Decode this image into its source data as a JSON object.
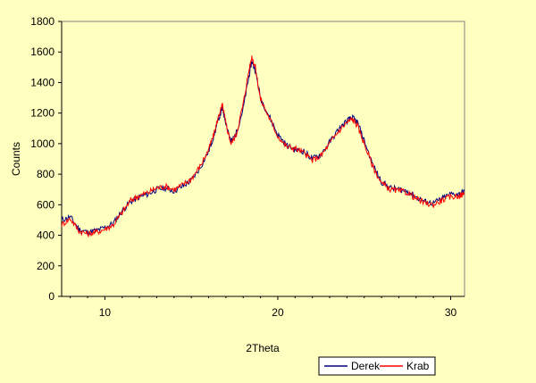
{
  "chart_data": {
    "type": "line",
    "title": "",
    "xlabel": "2Theta",
    "ylabel": "Counts",
    "xlim": [
      7.5,
      30.8
    ],
    "ylim": [
      0,
      1800
    ],
    "xticks": [
      10,
      20,
      30
    ],
    "yticks": [
      0,
      200,
      400,
      600,
      800,
      1000,
      1200,
      1400,
      1600,
      1800
    ],
    "grid": false,
    "legend_position": "bottom-right",
    "colors": {
      "background": "#FFFFC0",
      "plot_area": "#FFFFC0",
      "axis": "#000000"
    },
    "series": [
      {
        "name": "Derek",
        "color": "#000080",
        "x": [
          7.5,
          8.0,
          8.5,
          9.0,
          9.5,
          10.0,
          10.5,
          11.0,
          11.5,
          12.0,
          12.5,
          13.0,
          13.5,
          14.0,
          14.5,
          15.0,
          15.5,
          16.0,
          16.3,
          16.6,
          16.8,
          17.0,
          17.3,
          17.6,
          18.0,
          18.3,
          18.5,
          18.7,
          19.0,
          19.5,
          20.0,
          20.5,
          21.0,
          21.5,
          22.0,
          22.5,
          23.0,
          23.5,
          24.0,
          24.3,
          24.6,
          25.0,
          25.5,
          26.0,
          26.5,
          27.0,
          27.5,
          28.0,
          28.5,
          29.0,
          29.5,
          30.0,
          30.5,
          30.8
        ],
        "y": [
          500,
          520,
          440,
          420,
          430,
          450,
          480,
          560,
          620,
          650,
          670,
          700,
          710,
          690,
          720,
          760,
          840,
          950,
          1050,
          1170,
          1230,
          1140,
          1010,
          1070,
          1230,
          1420,
          1540,
          1480,
          1300,
          1180,
          1060,
          990,
          960,
          950,
          900,
          930,
          1010,
          1090,
          1150,
          1170,
          1140,
          1020,
          860,
          750,
          710,
          700,
          690,
          650,
          620,
          610,
          640,
          670,
          670,
          690
        ]
      },
      {
        "name": "Krab",
        "color": "#FF0000",
        "x": [
          7.5,
          8.0,
          8.5,
          9.0,
          9.5,
          10.0,
          10.5,
          11.0,
          11.5,
          12.0,
          12.5,
          13.0,
          13.5,
          14.0,
          14.5,
          15.0,
          15.5,
          16.0,
          16.3,
          16.6,
          16.8,
          17.0,
          17.3,
          17.6,
          18.0,
          18.3,
          18.5,
          18.7,
          19.0,
          19.5,
          20.0,
          20.5,
          21.0,
          21.5,
          22.0,
          22.5,
          23.0,
          23.5,
          24.0,
          24.3,
          24.6,
          25.0,
          25.5,
          26.0,
          26.5,
          27.0,
          27.5,
          28.0,
          28.5,
          29.0,
          29.5,
          30.0,
          30.5,
          30.8
        ],
        "y": [
          470,
          510,
          430,
          410,
          420,
          440,
          470,
          550,
          630,
          660,
          680,
          710,
          720,
          700,
          730,
          770,
          850,
          960,
          1060,
          1190,
          1250,
          1130,
          1000,
          1060,
          1260,
          1460,
          1570,
          1500,
          1290,
          1170,
          1050,
          980,
          970,
          940,
          890,
          920,
          1000,
          1080,
          1140,
          1160,
          1120,
          1000,
          850,
          740,
          700,
          690,
          680,
          640,
          610,
          600,
          630,
          650,
          660,
          670
        ]
      }
    ]
  }
}
